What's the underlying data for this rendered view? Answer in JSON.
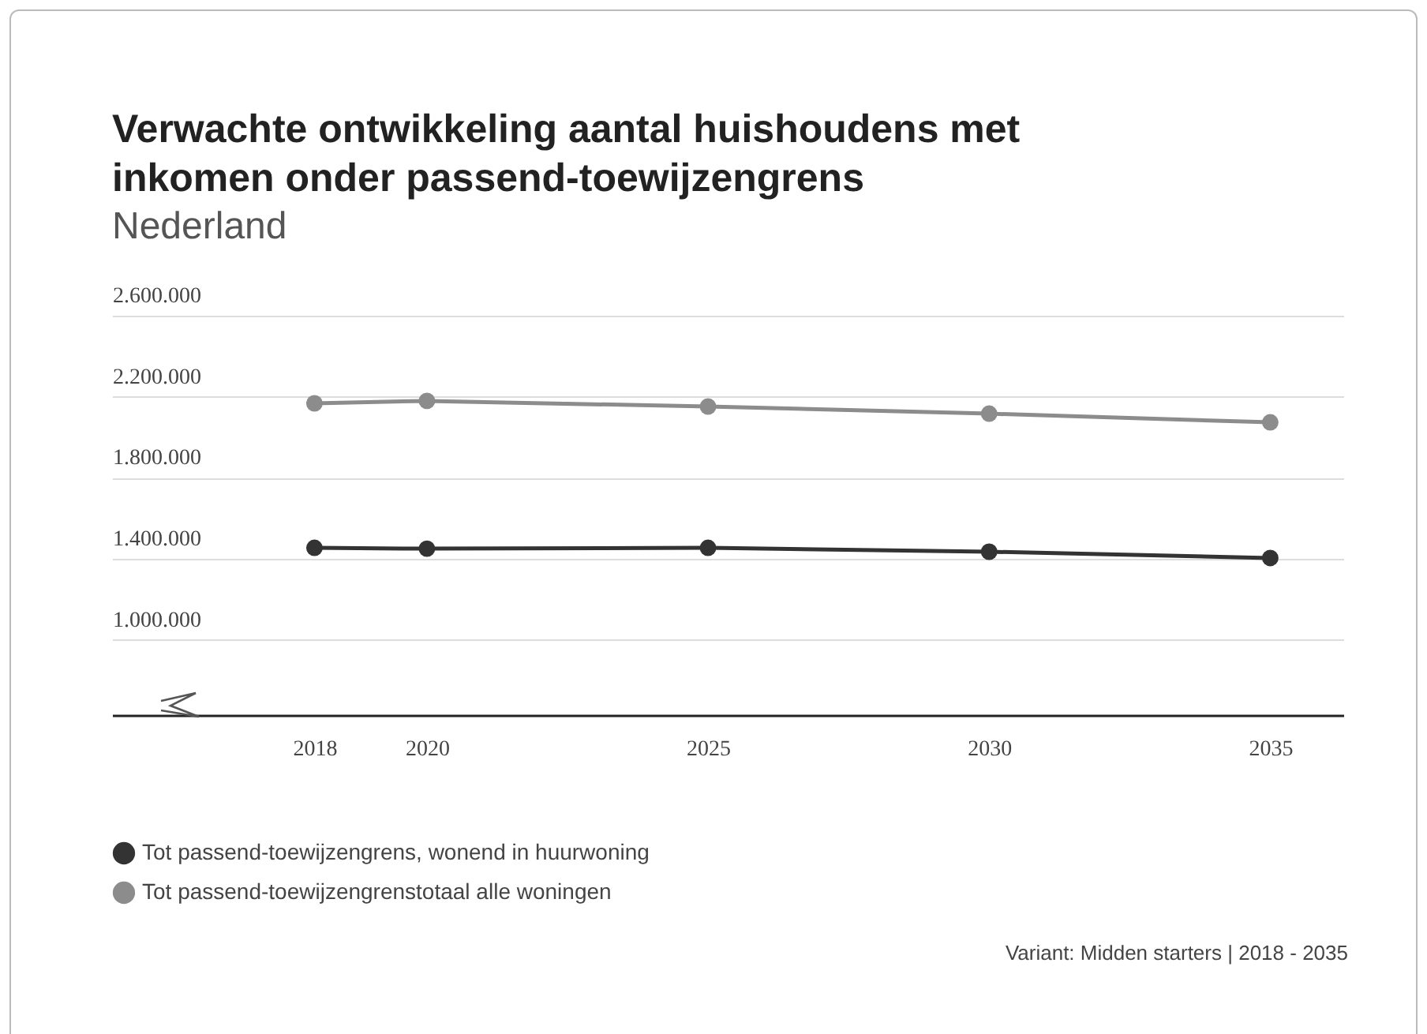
{
  "chart_data": {
    "type": "line",
    "title": "Verwachte ontwikkeling aantal huishoudens met\ninkomen onder passend-toewijzengrens",
    "subtitle": "Nederland",
    "x": [
      2018,
      2020,
      2025,
      2030,
      2035
    ],
    "series": [
      {
        "name": "Tot passend-toewijzengrens, wonend in huurwoning",
        "color": "#333333",
        "values": [
          1455000,
          1451000,
          1455000,
          1436000,
          1405000
        ]
      },
      {
        "name": "Tot passend-toewijzengrenstotaal alle woningen",
        "color": "#8c8c8c",
        "values": [
          2168000,
          2180000,
          2152000,
          2117000,
          2074000
        ]
      }
    ],
    "xlim": [
      2014.4,
      2036.3
    ],
    "xticks": [
      2018,
      2020,
      2025,
      2030,
      2035
    ],
    "ylim": [
      630000,
      2600000
    ],
    "yticks": [
      {
        "value": 1000000,
        "label": "1.000.000"
      },
      {
        "value": 1400000,
        "label": "1.400.000"
      },
      {
        "value": 1800000,
        "label": "1.800.000"
      },
      {
        "value": 2200000,
        "label": "2.200.000"
      },
      {
        "value": 2600000,
        "label": "2.600.000"
      }
    ],
    "grid": "y",
    "legend": "bottom",
    "marker": "circle",
    "line_style": "solid",
    "annotations": [
      "Variant: Midden starters | 2018 - 2035"
    ]
  }
}
